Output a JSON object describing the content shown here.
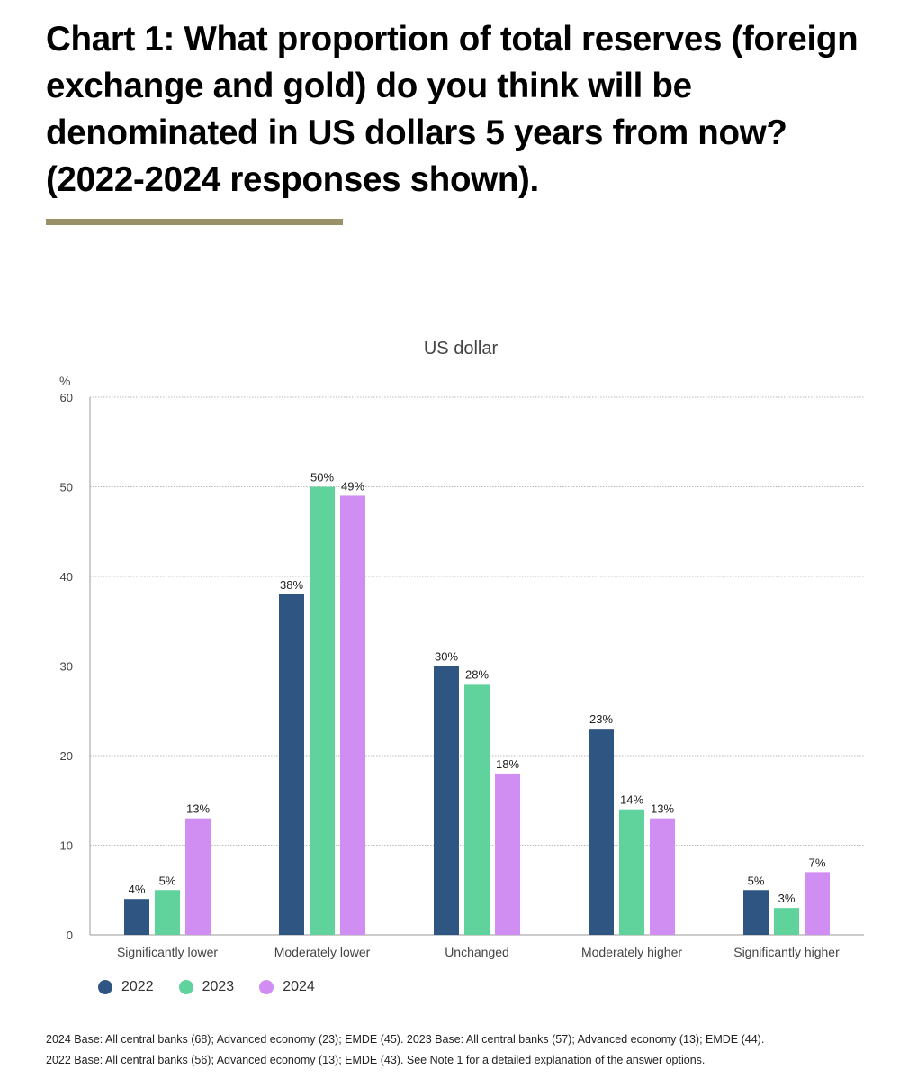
{
  "title": "Chart 1: What proportion of total reserves (foreign exchange and gold) do you think will be denominated in US dollars 5 years from now? (2022-2024 responses shown).",
  "chart_data": {
    "type": "bar",
    "title": "US dollar",
    "ylabel": "%",
    "ylim": [
      0,
      60
    ],
    "yticks": [
      0,
      10,
      20,
      30,
      40,
      50,
      60
    ],
    "grid": true,
    "legend_position": "bottom-left",
    "categories": [
      "Significantly lower",
      "Moderately lower",
      "Unchanged",
      "Moderately higher",
      "Significantly higher"
    ],
    "series": [
      {
        "name": "2022",
        "color": "#2f5582",
        "values": [
          4,
          38,
          30,
          23,
          5
        ],
        "labels": [
          "4%",
          "38%",
          "30%",
          "23%",
          "5%"
        ]
      },
      {
        "name": "2023",
        "color": "#5fd39b",
        "values": [
          5,
          50,
          28,
          14,
          3
        ],
        "labels": [
          "5%",
          "50%",
          "28%",
          "14%",
          "3%"
        ]
      },
      {
        "name": "2024",
        "color": "#d18ef2",
        "values": [
          13,
          49,
          18,
          13,
          7
        ],
        "labels": [
          "13%",
          "49%",
          "18%",
          "13%",
          "7%"
        ]
      }
    ]
  },
  "notes": [
    "2024 Base: All central banks (68); Advanced economy (23); EMDE (45). 2023 Base: All central banks (57); Advanced economy (13); EMDE (44).",
    "2022 Base: All central banks (56); Advanced economy (13); EMDE (43). See Note 1 for a detailed explanation of the answer options."
  ]
}
